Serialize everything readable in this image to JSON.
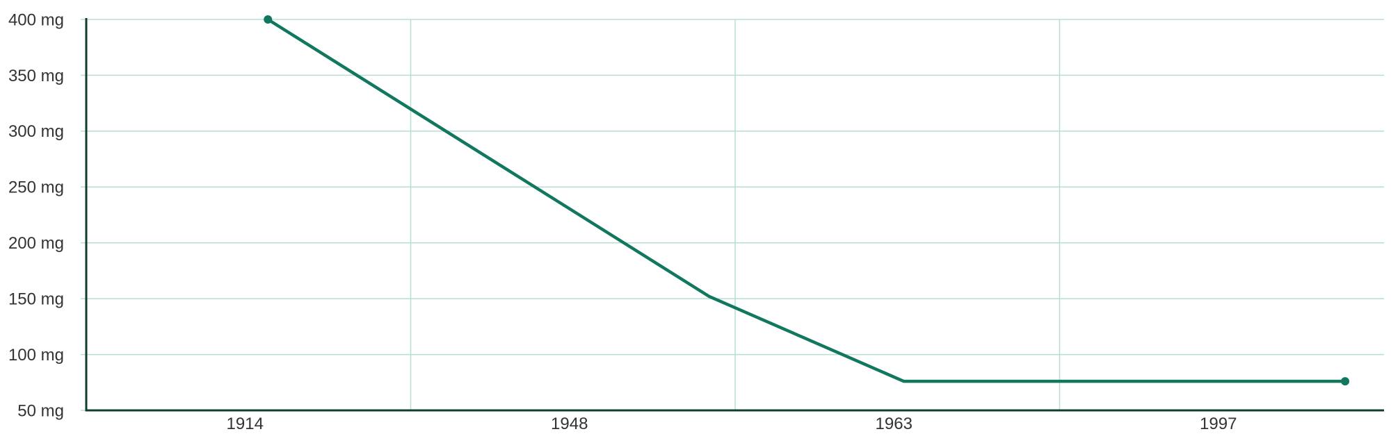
{
  "chart_data": {
    "type": "line",
    "title": "",
    "xlabel": "",
    "ylabel": "",
    "x_tick_labels": [
      "1914",
      "1948",
      "1963",
      "1997"
    ],
    "y_tick_labels": [
      "50 mg",
      "100 mg",
      "150 mg",
      "200 mg",
      "250 mg",
      "300 mg",
      "350 mg",
      "400 mg"
    ],
    "y_ticks": [
      50,
      100,
      150,
      200,
      250,
      300,
      350,
      400
    ],
    "ylim": [
      50,
      400
    ],
    "xlim": [
      1900,
      2000
    ],
    "grid": true,
    "legend": "none",
    "series": [
      {
        "color": "#11785f",
        "marker_ends": true,
        "points": [
          {
            "x": 1914,
            "y": 400
          },
          {
            "x": 1948,
            "y": 152
          },
          {
            "x": 1963,
            "y": 76
          },
          {
            "x": 1997,
            "y": 76
          }
        ]
      }
    ],
    "colors": {
      "line": "#11785f",
      "grid": "#b8ddd3",
      "axis": "#103d31",
      "text": "#333333"
    }
  }
}
